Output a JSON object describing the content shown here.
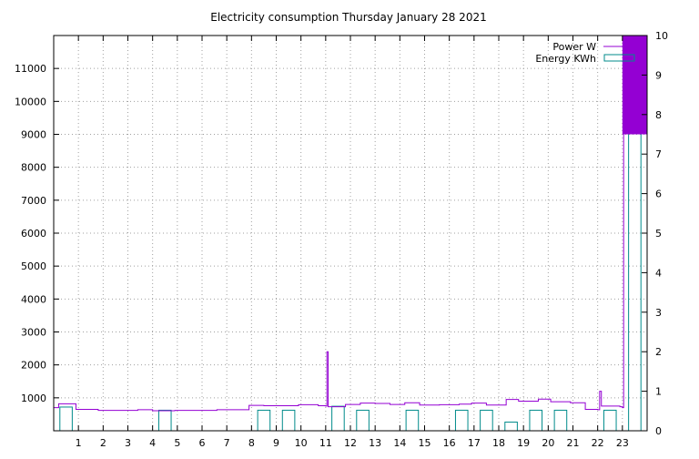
{
  "chart_data": {
    "type": "line",
    "title": "Electricity consumption Thursday January 28 2021",
    "x_ticks": [
      "1",
      "2",
      "3",
      "4",
      "5",
      "6",
      "7",
      "8",
      "9",
      "10",
      "11",
      "12",
      "13",
      "14",
      "15",
      "16",
      "17",
      "18",
      "19",
      "20",
      "21",
      "22",
      "23"
    ],
    "xlim": [
      0,
      24
    ],
    "y1_ticks": [
      1000,
      2000,
      3000,
      4000,
      5000,
      6000,
      7000,
      8000,
      9000,
      10000,
      11000
    ],
    "y1_labels": [
      "1000",
      "2000",
      "3000",
      "4000",
      "5000",
      "6000",
      "7000",
      "8000",
      "9000",
      "10000",
      "11000"
    ],
    "y1lim": [
      0,
      12000
    ],
    "y2_ticks": [
      0,
      1,
      2,
      3,
      4,
      5,
      6,
      7,
      8,
      9,
      10
    ],
    "y2_labels": [
      "0",
      "1",
      "2",
      "3",
      "4",
      "5",
      "6",
      "7",
      "8",
      "9",
      "10"
    ],
    "y2lim": [
      0,
      10
    ],
    "grid": true,
    "legend_position": "top-right",
    "series": [
      {
        "name": "Power W",
        "type": "step",
        "axis": "left",
        "color": "#9400d3",
        "x": [
          0,
          0.2,
          0.9,
          1.8,
          3.4,
          4.0,
          4.9,
          6.6,
          7.9,
          8.5,
          9.9,
          10.7,
          11.0,
          11.05,
          11.1,
          11.8,
          12.4,
          13.0,
          13.6,
          14.2,
          14.8,
          15.6,
          16.4,
          16.9,
          17.5,
          18.3,
          18.8,
          19.6,
          20.1,
          20.9,
          21.5,
          22.0,
          22.08,
          22.15,
          22.9,
          23.0
        ],
        "y": [
          700,
          820,
          650,
          620,
          640,
          610,
          620,
          640,
          770,
          760,
          790,
          760,
          750,
          2400,
          730,
          800,
          840,
          830,
          800,
          850,
          780,
          790,
          810,
          840,
          780,
          950,
          900,
          960,
          880,
          850,
          650,
          640,
          1200,
          750,
          730,
          700
        ]
      },
      {
        "name": "Energy KWh",
        "type": "bar",
        "axis": "right",
        "color": "#008b8b",
        "categories": [
          "0",
          "1",
          "2",
          "3",
          "4",
          "5",
          "6",
          "7",
          "8",
          "9",
          "10",
          "11",
          "12",
          "13",
          "14",
          "15",
          "16",
          "17",
          "18",
          "19",
          "20",
          "21",
          "22",
          "23"
        ],
        "values": [
          0.6,
          0,
          0,
          0,
          0.52,
          0,
          0,
          0,
          0.52,
          0.52,
          0,
          0.62,
          0.52,
          0,
          0.52,
          0,
          0.52,
          0.52,
          0.22,
          0.52,
          0.52,
          0,
          0.52,
          9.2
        ]
      }
    ],
    "filled_area": {
      "name": "",
      "color": "#9400d3",
      "x_range": [
        23.0,
        24.0
      ],
      "y_range": [
        9000,
        12000
      ]
    }
  }
}
